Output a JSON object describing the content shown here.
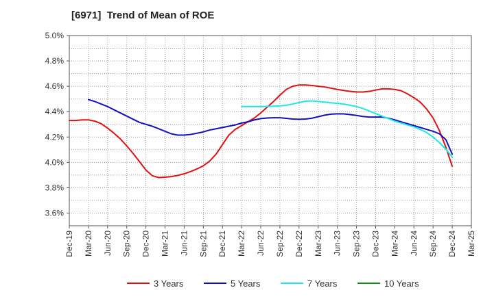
{
  "chart_data": {
    "type": "line",
    "title": "[6971]  Trend of Mean of ROE",
    "xlabel": "",
    "ylabel": "",
    "x_ticks": [
      "Dec-19",
      "Mar-20",
      "Jun-20",
      "Sep-20",
      "Dec-20",
      "Mar-21",
      "Jun-21",
      "Sep-21",
      "Dec-21",
      "Mar-22",
      "Jun-22",
      "Sep-22",
      "Dec-22",
      "Mar-23",
      "Jun-23",
      "Sep-23",
      "Dec-23",
      "Mar-24",
      "Jun-24",
      "Sep-24",
      "Dec-24",
      "Mar-25"
    ],
    "y_ticks": [
      "3.6%",
      "3.8%",
      "4.0%",
      "4.2%",
      "4.4%",
      "4.6%",
      "4.8%",
      "5.0%"
    ],
    "ylim": [
      3.5,
      5.0
    ],
    "grid": true,
    "legend_position": "bottom",
    "series": [
      {
        "name": "3 Years",
        "color": "#e01010",
        "x": [
          "Dec-19",
          "Jan-20",
          "Feb-20",
          "Mar-20",
          "Apr-20",
          "May-20",
          "Jun-20",
          "Jul-20",
          "Aug-20",
          "Sep-20",
          "Oct-20",
          "Nov-20",
          "Dec-20",
          "Jan-21",
          "Feb-21",
          "Mar-21",
          "Apr-21",
          "May-21",
          "Jun-21",
          "Jul-21",
          "Aug-21",
          "Sep-21",
          "Oct-21",
          "Nov-21",
          "Dec-21",
          "Jan-22",
          "Feb-22",
          "Mar-22",
          "Apr-22",
          "May-22",
          "Jun-22",
          "Jul-22",
          "Aug-22",
          "Sep-22",
          "Oct-22",
          "Nov-22",
          "Dec-22",
          "Jan-23",
          "Feb-23",
          "Mar-23",
          "Apr-23",
          "May-23",
          "Jun-23",
          "Jul-23",
          "Aug-23",
          "Sep-23",
          "Oct-23",
          "Nov-23",
          "Dec-23",
          "Jan-24",
          "Feb-24",
          "Mar-24",
          "Apr-24",
          "May-24",
          "Jun-24",
          "Jul-24",
          "Aug-24",
          "Sep-24",
          "Oct-24",
          "Nov-24",
          "Dec-24"
        ],
        "values": [
          4.33,
          4.33,
          4.335,
          4.335,
          4.325,
          4.305,
          4.27,
          4.23,
          4.185,
          4.13,
          4.07,
          4.005,
          3.94,
          3.895,
          3.88,
          3.883,
          3.888,
          3.897,
          3.91,
          3.927,
          3.948,
          3.973,
          4.01,
          4.065,
          4.14,
          4.215,
          4.26,
          4.29,
          4.32,
          4.35,
          4.39,
          4.435,
          4.48,
          4.53,
          4.575,
          4.6,
          4.61,
          4.61,
          4.607,
          4.6,
          4.595,
          4.585,
          4.575,
          4.567,
          4.56,
          4.555,
          4.555,
          4.56,
          4.57,
          4.58,
          4.58,
          4.575,
          4.565,
          4.54,
          4.51,
          4.475,
          4.42,
          4.35,
          4.25,
          4.12,
          3.97
        ]
      },
      {
        "name": "5 Years",
        "color": "#1010c0",
        "x": [
          "Mar-20",
          "Apr-20",
          "May-20",
          "Jun-20",
          "Jul-20",
          "Aug-20",
          "Sep-20",
          "Oct-20",
          "Nov-20",
          "Dec-20",
          "Jan-21",
          "Feb-21",
          "Mar-21",
          "Apr-21",
          "May-21",
          "Jun-21",
          "Jul-21",
          "Aug-21",
          "Sep-21",
          "Oct-21",
          "Nov-21",
          "Dec-21",
          "Jan-22",
          "Feb-22",
          "Mar-22",
          "Apr-22",
          "May-22",
          "Jun-22",
          "Jul-22",
          "Aug-22",
          "Sep-22",
          "Oct-22",
          "Nov-22",
          "Dec-22",
          "Jan-23",
          "Feb-23",
          "Mar-23",
          "Apr-23",
          "May-23",
          "Jun-23",
          "Jul-23",
          "Aug-23",
          "Sep-23",
          "Oct-23",
          "Nov-23",
          "Dec-23",
          "Jan-24",
          "Feb-24",
          "Mar-24",
          "Apr-24",
          "May-24",
          "Jun-24",
          "Jul-24",
          "Aug-24",
          "Sep-24",
          "Oct-24",
          "Nov-24",
          "Dec-24"
        ],
        "values": [
          4.495,
          4.48,
          4.46,
          4.44,
          4.415,
          4.39,
          4.365,
          4.34,
          4.315,
          4.3,
          4.285,
          4.265,
          4.245,
          4.225,
          4.215,
          4.215,
          4.22,
          4.23,
          4.24,
          4.255,
          4.265,
          4.275,
          4.285,
          4.295,
          4.31,
          4.32,
          4.335,
          4.345,
          4.35,
          4.352,
          4.352,
          4.347,
          4.342,
          4.34,
          4.342,
          4.348,
          4.36,
          4.372,
          4.38,
          4.383,
          4.382,
          4.377,
          4.37,
          4.362,
          4.357,
          4.357,
          4.358,
          4.348,
          4.335,
          4.32,
          4.305,
          4.29,
          4.275,
          4.26,
          4.245,
          4.225,
          4.18,
          4.065
        ]
      },
      {
        "name": "7 Years",
        "color": "#19e8e8",
        "x": [
          "Mar-22",
          "Apr-22",
          "May-22",
          "Jun-22",
          "Jul-22",
          "Aug-22",
          "Sep-22",
          "Oct-22",
          "Nov-22",
          "Dec-22",
          "Jan-23",
          "Feb-23",
          "Mar-23",
          "Apr-23",
          "May-23",
          "Jun-23",
          "Jul-23",
          "Aug-23",
          "Sep-23",
          "Oct-23",
          "Nov-23",
          "Dec-23",
          "Jan-24",
          "Feb-24",
          "Mar-24",
          "Apr-24",
          "May-24",
          "Jun-24",
          "Jul-24",
          "Aug-24",
          "Sep-24",
          "Oct-24",
          "Nov-24",
          "Dec-24"
        ],
        "values": [
          4.44,
          4.44,
          4.44,
          4.44,
          4.441,
          4.443,
          4.445,
          4.45,
          4.46,
          4.472,
          4.482,
          4.485,
          4.48,
          4.475,
          4.47,
          4.465,
          4.46,
          4.45,
          4.44,
          4.425,
          4.405,
          4.385,
          4.365,
          4.345,
          4.325,
          4.31,
          4.295,
          4.28,
          4.26,
          4.235,
          4.2,
          4.155,
          4.105,
          4.04
        ]
      },
      {
        "name": "10 Years",
        "color": "#1a8a1a",
        "x": [],
        "values": []
      }
    ]
  }
}
